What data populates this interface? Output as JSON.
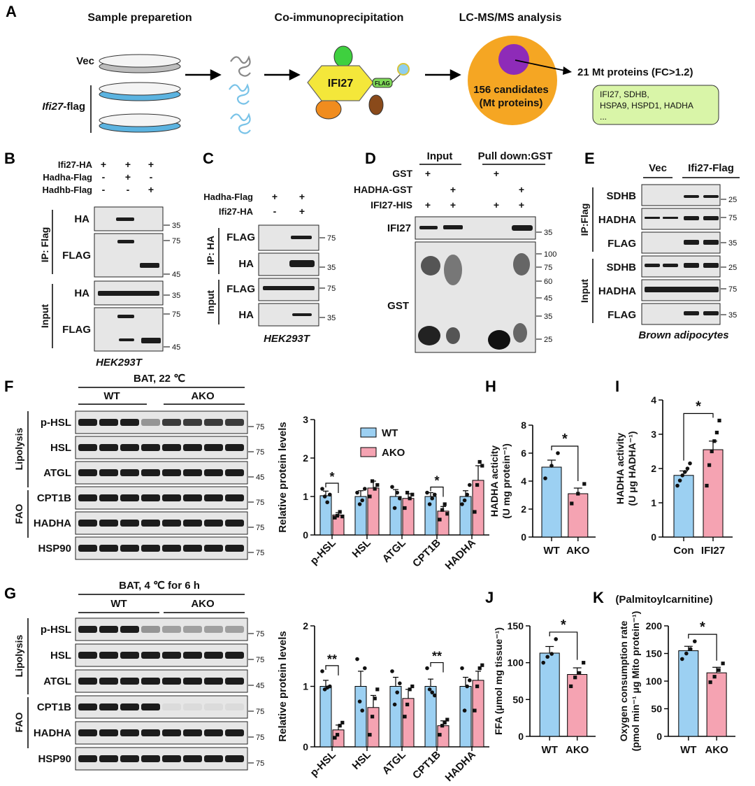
{
  "colors": {
    "wt": "#9cd0f2",
    "ako": "#f5a3b2",
    "orange": "#f5a623",
    "purple": "#8e2bb8",
    "ifi": "#f4e73a"
  },
  "panelA": {
    "letter": "A",
    "headers": [
      "Sample preparetion",
      "Co-immunoprecipitation",
      "LC-MS/MS analysis"
    ],
    "vec": "Vec",
    "ifi": "Ifi27",
    "ifi_suffix": "-flag",
    "ifi_label": "IFI27",
    "flag_tag": "FLAG",
    "candidates": "156 candidates",
    "mt": "(Mt proteins)",
    "result": "21 Mt proteins (FC>1.2)",
    "box_lines": [
      "IFI27, SDHB,",
      "HSPA9, HSPD1, HADHA",
      "..."
    ]
  },
  "panelB": {
    "letter": "B",
    "rows": [
      {
        "label": "Ifi27-HA",
        "marks": [
          "+",
          "+",
          "+"
        ]
      },
      {
        "label": "Hadha-Flag",
        "marks": [
          "-",
          "+",
          "-"
        ]
      },
      {
        "label": "Hadhb-Flag",
        "marks": [
          "-",
          "-",
          "+"
        ]
      }
    ],
    "group_ip": "IP: Flag",
    "group_input": "Input",
    "blots": [
      "HA",
      "FLAG",
      "HA",
      "FLAG"
    ],
    "mw": [
      "35",
      "75",
      "45",
      "35",
      "75",
      "45"
    ],
    "cell": "HEK293T"
  },
  "panelC": {
    "letter": "C",
    "rows": [
      {
        "label": "Hadha-Flag",
        "marks": [
          "+",
          "+"
        ]
      },
      {
        "label": "Ifi27-HA",
        "marks": [
          "-",
          "+"
        ]
      }
    ],
    "group_ip": "IP: HA",
    "group_input": "Input",
    "blots": [
      "FLAG",
      "HA",
      "FLAG",
      "HA"
    ],
    "mw": [
      "75",
      "35",
      "75",
      "35"
    ],
    "cell": "HEK293T"
  },
  "panelD": {
    "letter": "D",
    "input": "Input",
    "pulldown": "Pull down:GST",
    "rows": [
      {
        "label": "GST",
        "marks": [
          "+",
          "",
          "+",
          ""
        ]
      },
      {
        "label": "HADHA-GST",
        "marks": [
          "",
          "+",
          "",
          "+"
        ]
      },
      {
        "label": "IFI27-HIS",
        "marks": [
          "+",
          "+",
          "+",
          "+"
        ]
      }
    ],
    "blots": [
      "IFI27",
      "GST"
    ],
    "mw": [
      "35",
      "100",
      "75",
      "60",
      "45",
      "35",
      "25"
    ]
  },
  "panelE": {
    "letter": "E",
    "vec": "Vec",
    "ifi": "Ifi27-Flag",
    "group_ip": "IP:Flag",
    "group_input": "Input",
    "blots": [
      "SDHB",
      "HADHA",
      "FLAG",
      "SDHB",
      "HADHA",
      "FLAG"
    ],
    "mw": [
      "25",
      "75",
      "35",
      "25",
      "75",
      "35"
    ],
    "cell": "Brown adipocytes"
  },
  "panelF": {
    "letter": "F",
    "title": "BAT, 22 ℃",
    "wt": "WT",
    "ako": "AKO",
    "group1": "Lipolysis",
    "group2": "FAO",
    "blots": [
      "p-HSL",
      "HSL",
      "ATGL",
      "CPT1B",
      "HADHA",
      "HSP90"
    ],
    "mw": [
      "75",
      "75",
      "45",
      "75",
      "75",
      "75"
    ]
  },
  "panelG": {
    "letter": "G",
    "title": "BAT, 4 ℃ for 6 h",
    "wt": "WT",
    "ako": "AKO",
    "group1": "Lipolysis",
    "group2": "FAO",
    "blots": [
      "p-HSL",
      "HSL",
      "ATGL",
      "CPT1B",
      "HADHA",
      "HSP90"
    ],
    "mw": [
      "75",
      "75",
      "45",
      "75",
      "75",
      "75"
    ]
  },
  "panelH": {
    "letter": "H"
  },
  "panelI": {
    "letter": "I"
  },
  "panelJ": {
    "letter": "J"
  },
  "panelK": {
    "letter": "K",
    "note": "(Palmitoylcarnitine)"
  },
  "chart_data": [
    {
      "id": "F",
      "type": "bar",
      "ylabel": "Relative protein levels",
      "ylim": [
        0,
        3
      ],
      "yticks": [
        "0",
        "1",
        "2",
        "3"
      ],
      "categories": [
        "p-HSL",
        "HSL",
        "ATGL",
        "CPT1B",
        "HADHA"
      ],
      "series": [
        {
          "name": "WT",
          "values": [
            1.02,
            1.0,
            1.0,
            1.0,
            1.0
          ],
          "err": [
            0.12,
            0.15,
            0.18,
            0.1,
            0.15
          ],
          "points": [
            [
              1.2,
              1.0,
              0.85,
              1.05
            ],
            [
              1.1,
              0.8,
              0.9,
              1.2
            ],
            [
              1.25,
              0.7,
              1.1,
              0.95
            ],
            [
              1.1,
              0.8,
              0.95,
              1.05
            ],
            [
              0.8,
              0.9,
              1.05,
              1.3
            ]
          ]
        },
        {
          "name": "AKO",
          "values": [
            0.52,
            1.22,
            0.95,
            0.62,
            1.42
          ],
          "err": [
            0.06,
            0.18,
            0.12,
            0.12,
            0.38
          ],
          "points": [
            [
              0.45,
              0.5,
              0.6,
              0.48
            ],
            [
              1.0,
              1.4,
              1.2,
              1.3
            ],
            [
              0.7,
              1.1,
              0.95,
              1.05
            ],
            [
              0.4,
              0.65,
              0.8,
              0.55
            ],
            [
              0.6,
              1.3,
              1.9,
              1.8
            ]
          ]
        }
      ],
      "sig": [
        {
          "cat": "p-HSL",
          "text": "*"
        },
        {
          "cat": "CPT1B",
          "text": "*"
        }
      ]
    },
    {
      "id": "G",
      "type": "bar",
      "ylabel": "Relative protein levels",
      "ylim": [
        0,
        2
      ],
      "yticks": [
        "0",
        "1",
        "2"
      ],
      "categories": [
        "p-HSL",
        "HSL",
        "ATGL",
        "CPT1B",
        "HADHA"
      ],
      "series": [
        {
          "name": "WT",
          "values": [
            1.0,
            1.0,
            1.0,
            1.0,
            1.0
          ],
          "err": [
            0.1,
            0.25,
            0.15,
            0.12,
            0.15
          ],
          "points": [
            [
              1.25,
              0.95,
              0.98,
              1.0
            ],
            [
              1.45,
              0.75,
              0.6,
              1.3
            ],
            [
              1.25,
              0.7,
              0.9,
              1.05
            ],
            [
              1.3,
              0.95,
              0.9,
              0.85
            ],
            [
              1.3,
              0.6,
              1.0,
              1.1
            ]
          ]
        },
        {
          "name": "AKO",
          "values": [
            0.28,
            0.65,
            0.8,
            0.35,
            1.1
          ],
          "err": [
            0.08,
            0.2,
            0.15,
            0.08,
            0.15
          ],
          "points": [
            [
              0.15,
              0.2,
              0.35,
              0.4
            ],
            [
              0.2,
              0.5,
              0.8,
              0.95
            ],
            [
              0.5,
              0.7,
              0.95,
              1.0
            ],
            [
              0.2,
              0.35,
              0.4,
              0.45
            ],
            [
              0.6,
              1.0,
              1.3,
              1.35
            ]
          ]
        }
      ],
      "sig": [
        {
          "cat": "p-HSL",
          "text": "**"
        },
        {
          "cat": "CPT1B",
          "text": "**"
        }
      ]
    },
    {
      "id": "H",
      "type": "bar",
      "ylabel": "HADHA acticity",
      "ylabel2": "(U mg protein⁻¹)",
      "ylim": [
        0,
        8
      ],
      "yticks": [
        "0",
        "2",
        "4",
        "6",
        "8"
      ],
      "categories": [
        "WT",
        "AKO"
      ],
      "values": [
        5.0,
        3.1
      ],
      "err": [
        0.5,
        0.4
      ],
      "points": [
        [
          4.2,
          5.1,
          6.0
        ],
        [
          2.4,
          3.1,
          3.8
        ]
      ],
      "sig": "*"
    },
    {
      "id": "I",
      "type": "bar",
      "ylabel": "HADHA activity",
      "ylabel2": "(U μg HADHA⁻¹)",
      "ylim": [
        0,
        4
      ],
      "yticks": [
        "0",
        "1",
        "2",
        "3",
        "4"
      ],
      "categories": [
        "Con",
        "IFI27"
      ],
      "values": [
        1.8,
        2.55
      ],
      "err": [
        0.13,
        0.25
      ],
      "points": [
        [
          1.5,
          1.65,
          1.8,
          1.9,
          2.0,
          2.15
        ],
        [
          1.5,
          2.1,
          2.5,
          2.8,
          3.05,
          3.4
        ]
      ],
      "sig": "*"
    },
    {
      "id": "J",
      "type": "bar",
      "ylabel": "FFA (μmol mg tissue⁻¹)",
      "ylim": [
        0,
        150
      ],
      "yticks": [
        "0",
        "50",
        "100",
        "150"
      ],
      "categories": [
        "WT",
        "AKO"
      ],
      "values": [
        113,
        84
      ],
      "err": [
        9,
        9
      ],
      "points": [
        [
          100,
          108,
          112,
          132
        ],
        [
          68,
          80,
          86,
          100
        ]
      ],
      "sig": "*"
    },
    {
      "id": "K",
      "type": "bar",
      "ylabel": "Oxygen consumption rate",
      "ylabel2": "(pmol min⁻¹ μg Mito protein⁻¹)",
      "ylim": [
        0,
        200
      ],
      "yticks": [
        "0",
        "50",
        "100",
        "150",
        "200"
      ],
      "categories": [
        "WT",
        "AKO"
      ],
      "values": [
        155,
        115
      ],
      "err": [
        8,
        10
      ],
      "points": [
        [
          140,
          150,
          158,
          172
        ],
        [
          98,
          108,
          120,
          132
        ]
      ],
      "sig": "*"
    }
  ]
}
